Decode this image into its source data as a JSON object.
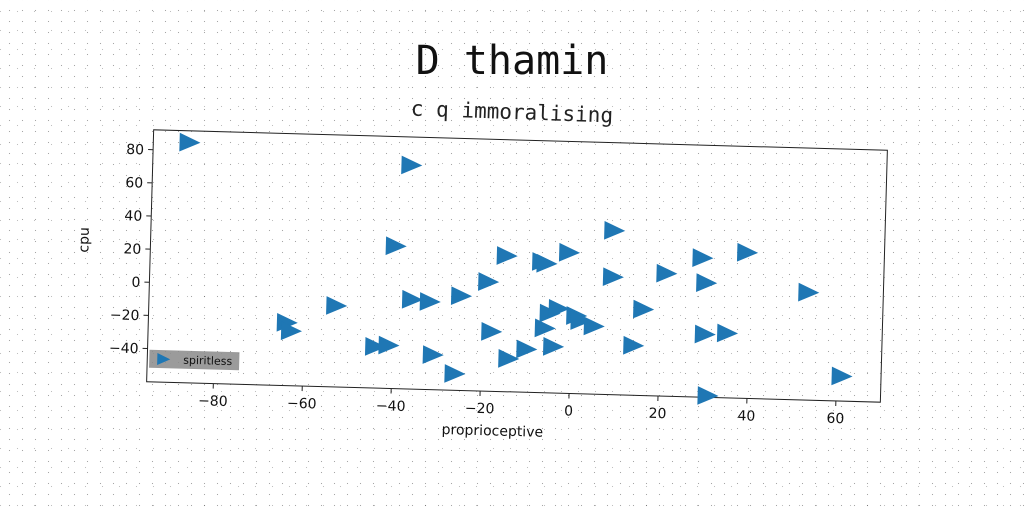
{
  "chart_data": {
    "type": "scatter",
    "title": "D thamin",
    "subtitle": "c q immoralising",
    "xlabel": "proprioceptive",
    "ylabel": "cpu",
    "xlim": [
      -95,
      70
    ],
    "ylim": [
      -60,
      92
    ],
    "xticks": [
      -80,
      -60,
      -40,
      -20,
      0,
      20,
      40,
      60
    ],
    "yticks": [
      -40,
      -20,
      0,
      20,
      40,
      60,
      80
    ],
    "xtick_labels": [
      "−80",
      "−60",
      "−40",
      "−20",
      "0",
      "20",
      "40",
      "60"
    ],
    "ytick_labels": [
      "−40",
      "−20",
      "0",
      "20",
      "40",
      "60",
      "80"
    ],
    "grid": false,
    "legend_position": "lower-left",
    "marker": "triangle-right",
    "series": [
      {
        "name": "spiritless",
        "color": "#1f77b4",
        "points": [
          [
            -87,
            85
          ],
          [
            -37,
            75
          ],
          [
            -40,
            26
          ],
          [
            -64,
            -22
          ],
          [
            -63,
            -27
          ],
          [
            -53,
            -11
          ],
          [
            -44,
            -35
          ],
          [
            -41,
            -34
          ],
          [
            -36,
            -6
          ],
          [
            -32,
            -7
          ],
          [
            -31,
            -39
          ],
          [
            -26,
            -50
          ],
          [
            -25,
            -3
          ],
          [
            -19,
            6
          ],
          [
            -18,
            -24
          ],
          [
            -15,
            22
          ],
          [
            -14,
            -40
          ],
          [
            -10,
            -34
          ],
          [
            -7,
            19
          ],
          [
            -6,
            18
          ],
          [
            -6,
            -21
          ],
          [
            -5,
            -12
          ],
          [
            -4,
            -32
          ],
          [
            -3,
            -9
          ],
          [
            -1,
            25
          ],
          [
            1,
            -13
          ],
          [
            2,
            -16
          ],
          [
            5,
            -19
          ],
          [
            9,
            11
          ],
          [
            9,
            39
          ],
          [
            14,
            -30
          ],
          [
            16,
            -8
          ],
          [
            21,
            14
          ],
          [
            29,
            24
          ],
          [
            30,
            9
          ],
          [
            30,
            -22
          ],
          [
            31,
            -59
          ],
          [
            35,
            -21
          ],
          [
            39,
            28
          ],
          [
            53,
            5
          ],
          [
            61,
            -45
          ]
        ]
      }
    ]
  }
}
